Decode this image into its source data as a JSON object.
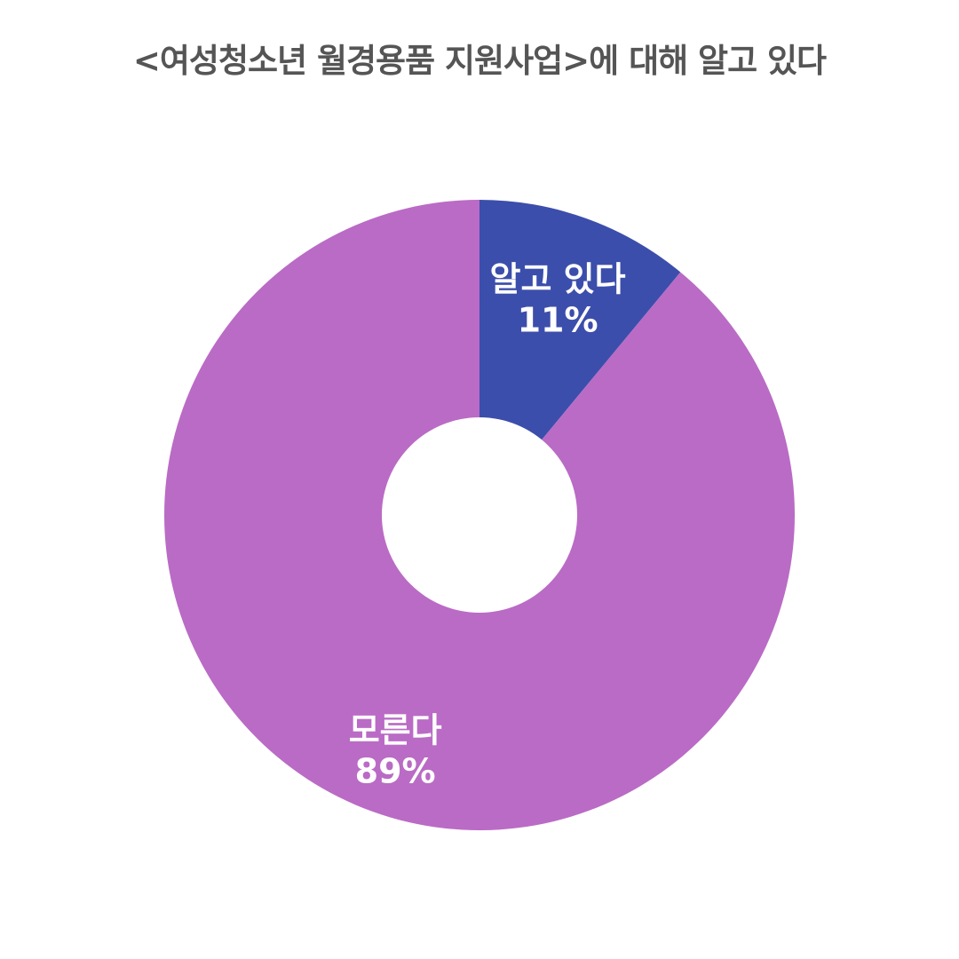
{
  "chart_data": {
    "type": "pie",
    "donut": true,
    "title": "<여성청소년 월경용품 지원사업>에 대해 알고 있다",
    "slices": [
      {
        "label": "알고 있다",
        "value": 11,
        "value_label": "11%",
        "color": "#3c4eab"
      },
      {
        "label": "모른다",
        "value": 89,
        "value_label": "89%",
        "color": "#ba6bc5"
      }
    ],
    "legend": "none"
  }
}
